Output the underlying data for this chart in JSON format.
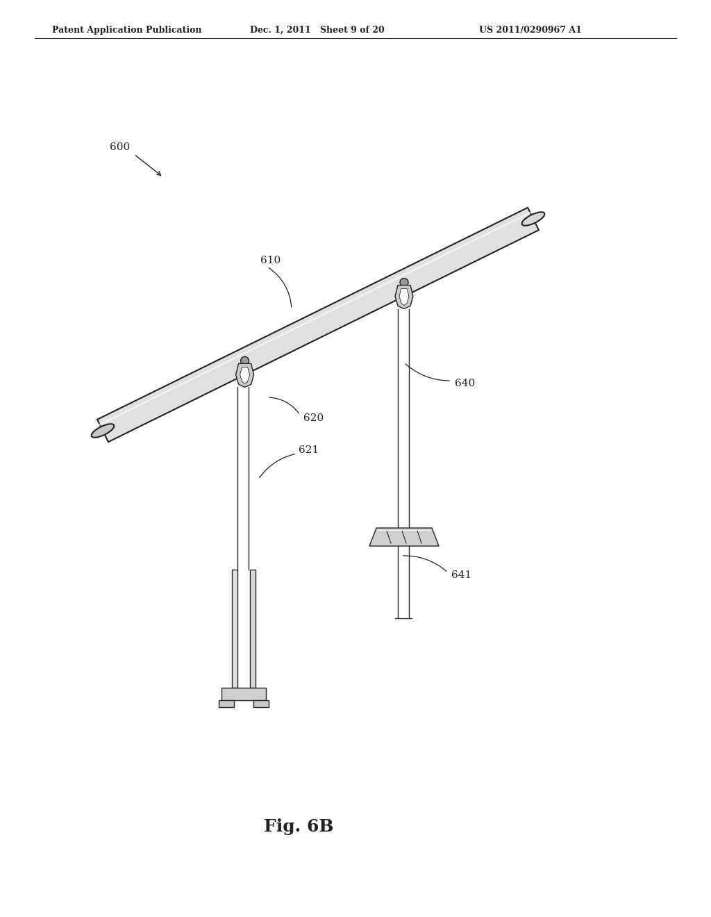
{
  "bg_color": "#ffffff",
  "line_color": "#222222",
  "header_left": "Patent Application Publication",
  "header_mid": "Dec. 1, 2011   Sheet 9 of 20",
  "header_right": "US 2011/0290967 A1",
  "figure_label": "Fig. 6B",
  "ref_600": "600",
  "ref_610": "610",
  "ref_620": "620",
  "ref_621": "621",
  "ref_640": "640",
  "ref_641": "641"
}
